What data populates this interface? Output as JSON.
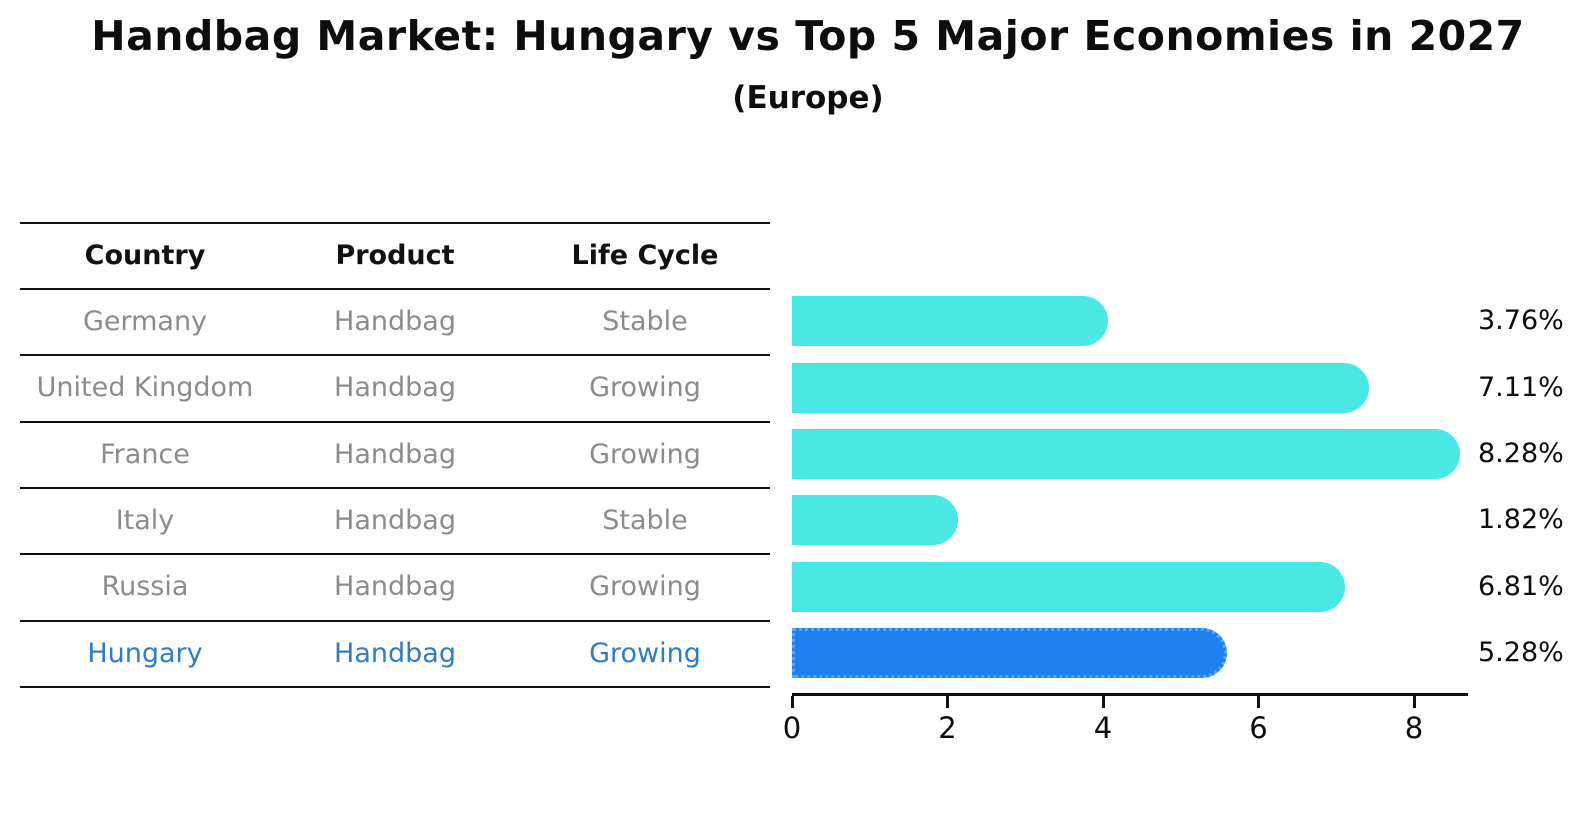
{
  "title": "Handbag Market: Hungary vs Top 5 Major Economies in 2027",
  "subtitle": "(Europe)",
  "table": {
    "headers": [
      "Country",
      "Product",
      "Life Cycle"
    ],
    "rows": [
      {
        "country": "Germany",
        "product": "Handbag",
        "life_cycle": "Stable",
        "highlighted": false
      },
      {
        "country": "United Kingdom",
        "product": "Handbag",
        "life_cycle": "Growing",
        "highlighted": false
      },
      {
        "country": "France",
        "product": "Handbag",
        "life_cycle": "Growing",
        "highlighted": false
      },
      {
        "country": "Italy",
        "product": "Handbag",
        "life_cycle": "Stable",
        "highlighted": false
      },
      {
        "country": "Russia",
        "product": "Handbag",
        "life_cycle": "Growing",
        "highlighted": false
      },
      {
        "country": "Hungary",
        "product": "Handbag",
        "life_cycle": "Growing",
        "highlighted": true
      }
    ]
  },
  "chart_data": {
    "type": "bar",
    "orientation": "horizontal",
    "categories": [
      "Germany",
      "United Kingdom",
      "France",
      "Italy",
      "Russia",
      "Hungary"
    ],
    "values": [
      3.76,
      7.11,
      8.28,
      1.82,
      6.81,
      5.28
    ],
    "value_labels": [
      "3.76%",
      "7.11%",
      "8.28%",
      "1.82%",
      "6.81%",
      "5.28%"
    ],
    "x_ticks": [
      "0",
      "2",
      "4",
      "6",
      "8"
    ],
    "x_tick_values": [
      0,
      2,
      4,
      6,
      8
    ],
    "xlim": [
      0,
      8.7
    ],
    "highlight_category": "Hungary",
    "grid": false,
    "legend": null,
    "title": "Handbag Market: Hungary vs Top 5 Major Economies in 2027",
    "subtitle": "(Europe)"
  },
  "colors": {
    "bar": "#49E8E4",
    "highlight_bar": "#1E81F0",
    "highlight_bar_border": "#5AA8F2",
    "highlight_text": "#2E7DC9",
    "body_text": "#8C8C8C",
    "heading_text": "#111111"
  }
}
